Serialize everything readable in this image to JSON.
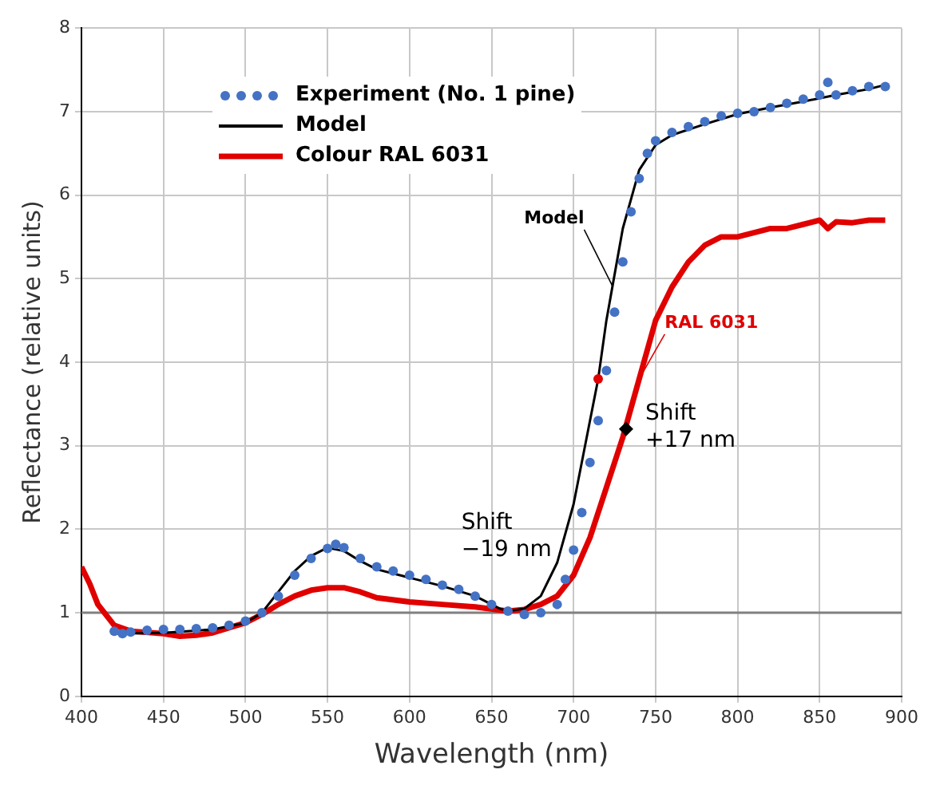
{
  "chart_data": {
    "type": "line",
    "xlabel": "Wavelength (nm)",
    "ylabel": "Reflectance (relative units)",
    "xlim": [
      400,
      900
    ],
    "xticks": [
      400,
      450,
      500,
      550,
      600,
      650,
      700,
      750,
      800,
      850,
      900
    ],
    "ylim": [
      0,
      8
    ],
    "yticks": [
      0,
      1,
      2,
      3,
      4,
      5,
      6,
      7,
      8
    ],
    "grid": true,
    "legend": "top left",
    "ref_lines": [
      {
        "axis": "y",
        "value": 1,
        "color": "#808080"
      }
    ],
    "annotations": [
      {
        "text": "Model",
        "x": 724,
        "y": 4.9
      },
      {
        "text": "RAL 6031",
        "x": 740,
        "y": 3.8
      },
      {
        "text": "Shift\n−19 nm",
        "x": 655,
        "y": 1.05
      },
      {
        "text": "Shift\n+17 nm",
        "x": 732,
        "y": 3.2
      }
    ],
    "series": [
      {
        "name": "Experiment (No. 1 pine)",
        "type": "scatter",
        "marker": "circle",
        "color": "#4472c4",
        "x": [
          420,
          425,
          430,
          440,
          450,
          460,
          470,
          480,
          490,
          500,
          510,
          520,
          530,
          540,
          550,
          555,
          560,
          570,
          580,
          590,
          600,
          610,
          620,
          630,
          640,
          650,
          660,
          670,
          680,
          690,
          695,
          700,
          705,
          710,
          715,
          720,
          725,
          730,
          735,
          740,
          745,
          750,
          760,
          770,
          780,
          790,
          800,
          810,
          820,
          830,
          840,
          850,
          855,
          860,
          870,
          880,
          890
        ],
        "values": [
          0.78,
          0.75,
          0.77,
          0.79,
          0.8,
          0.8,
          0.81,
          0.82,
          0.85,
          0.9,
          1.0,
          1.2,
          1.45,
          1.65,
          1.77,
          1.82,
          1.78,
          1.65,
          1.55,
          1.5,
          1.45,
          1.4,
          1.33,
          1.28,
          1.2,
          1.1,
          1.02,
          0.98,
          1.0,
          1.1,
          1.4,
          1.75,
          2.2,
          2.8,
          3.3,
          3.9,
          4.6,
          5.2,
          5.8,
          6.2,
          6.5,
          6.65,
          6.75,
          6.82,
          6.88,
          6.95,
          6.98,
          7.0,
          7.05,
          7.1,
          7.15,
          7.2,
          7.35,
          7.2,
          7.25,
          7.3,
          7.3
        ]
      },
      {
        "name": "Model",
        "type": "line",
        "color": "#000000",
        "x": [
          420,
          450,
          480,
          500,
          510,
          520,
          530,
          540,
          550,
          560,
          570,
          580,
          600,
          620,
          640,
          655,
          660,
          670,
          680,
          690,
          700,
          710,
          715,
          720,
          730,
          740,
          750,
          760,
          780,
          800,
          820,
          840,
          860,
          880,
          890
        ],
        "values": [
          0.75,
          0.76,
          0.8,
          0.88,
          1.0,
          1.25,
          1.5,
          1.68,
          1.78,
          1.74,
          1.62,
          1.52,
          1.42,
          1.32,
          1.2,
          1.05,
          1.02,
          1.05,
          1.2,
          1.6,
          2.3,
          3.3,
          3.8,
          4.5,
          5.6,
          6.3,
          6.6,
          6.72,
          6.85,
          6.97,
          7.05,
          7.12,
          7.2,
          7.27,
          7.32
        ]
      },
      {
        "name": "Colour RAL 6031",
        "type": "line",
        "color": "#e00000",
        "x": [
          400,
          405,
          410,
          420,
          430,
          450,
          460,
          470,
          480,
          490,
          500,
          510,
          520,
          530,
          540,
          550,
          560,
          570,
          580,
          600,
          620,
          640,
          660,
          670,
          680,
          690,
          700,
          710,
          720,
          730,
          740,
          750,
          760,
          770,
          780,
          790,
          800,
          810,
          820,
          830,
          840,
          850,
          855,
          860,
          870,
          880,
          890
        ],
        "values": [
          1.55,
          1.35,
          1.1,
          0.85,
          0.78,
          0.75,
          0.72,
          0.73,
          0.76,
          0.82,
          0.88,
          0.98,
          1.1,
          1.2,
          1.27,
          1.3,
          1.3,
          1.25,
          1.18,
          1.13,
          1.1,
          1.07,
          1.02,
          1.04,
          1.1,
          1.2,
          1.45,
          1.9,
          2.5,
          3.1,
          3.8,
          4.5,
          4.9,
          5.2,
          5.4,
          5.5,
          5.5,
          5.55,
          5.6,
          5.6,
          5.65,
          5.7,
          5.6,
          5.68,
          5.67,
          5.7,
          5.7
        ]
      },
      {
        "type": "scatter",
        "marker": "circle",
        "color": "#e00000",
        "x": [
          715
        ],
        "values": [
          3.8
        ]
      },
      {
        "type": "scatter",
        "marker": "diamond",
        "color": "#000000",
        "x": [
          732
        ],
        "values": [
          3.2
        ]
      }
    ]
  }
}
